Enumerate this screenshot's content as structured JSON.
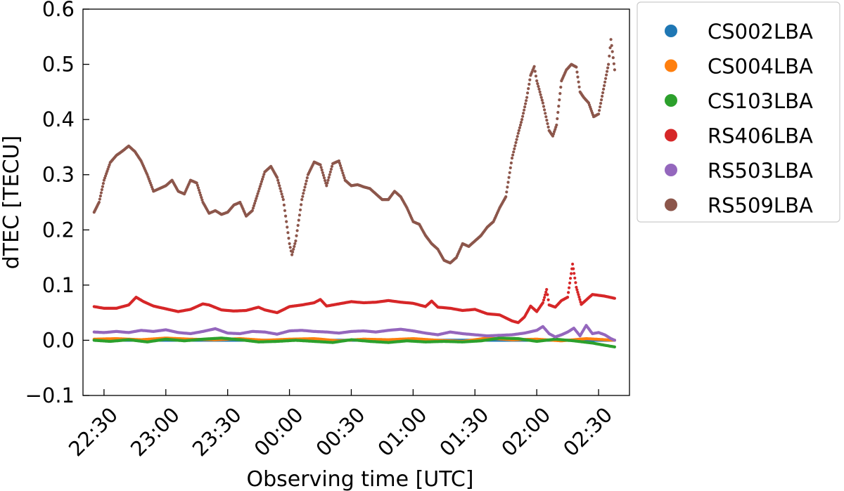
{
  "chart_data": {
    "type": "scatter",
    "title": "",
    "xlabel": "Observing time [UTC]",
    "ylabel": "dTEC [TECU]",
    "x_unit": "UTC time (hours; values past 24 are after midnight)",
    "xlim": [
      22.33,
      26.75
    ],
    "ylim": [
      -0.1,
      0.6
    ],
    "x_ticks": [
      22.5,
      23.0,
      23.5,
      24.0,
      24.5,
      25.0,
      25.5,
      26.0,
      26.5
    ],
    "x_tick_labels": [
      "22:30",
      "23:00",
      "23:30",
      "00:00",
      "00:30",
      "01:00",
      "01:30",
      "02:00",
      "02:30"
    ],
    "y_ticks": [
      -0.1,
      0.0,
      0.1,
      0.2,
      0.3,
      0.4,
      0.5,
      0.6
    ],
    "y_tick_labels": [
      "−0.1",
      "0.0",
      "0.1",
      "0.2",
      "0.3",
      "0.4",
      "0.5",
      "0.6"
    ],
    "legend_position": "outside right, top",
    "grid": false,
    "series": [
      {
        "name": "CS002LBA",
        "color": "#1f77b4",
        "points": [
          [
            22.42,
            0.0
          ],
          [
            22.7,
            0.0
          ],
          [
            23.0,
            0.0
          ],
          [
            23.3,
            0.0
          ],
          [
            23.6,
            0.0
          ],
          [
            23.9,
            0.0
          ],
          [
            24.2,
            0.0
          ],
          [
            24.5,
            0.0
          ],
          [
            24.8,
            0.0
          ],
          [
            25.1,
            0.0
          ],
          [
            25.4,
            0.0
          ],
          [
            25.7,
            0.0
          ],
          [
            26.0,
            0.0
          ],
          [
            26.3,
            0.0
          ],
          [
            26.63,
            0.0
          ]
        ]
      },
      {
        "name": "CS004LBA",
        "color": "#ff7f0e",
        "points": [
          [
            22.42,
            0.002
          ],
          [
            22.6,
            0.003
          ],
          [
            22.8,
            0.001
          ],
          [
            23.0,
            0.004
          ],
          [
            23.2,
            0.002
          ],
          [
            23.4,
            0.001
          ],
          [
            23.6,
            0.003
          ],
          [
            23.8,
            0.0
          ],
          [
            24.0,
            0.002
          ],
          [
            24.2,
            0.003
          ],
          [
            24.4,
            -0.001
          ],
          [
            24.6,
            0.002
          ],
          [
            24.8,
            0.001
          ],
          [
            25.0,
            0.003
          ],
          [
            25.2,
            0.0
          ],
          [
            25.4,
            -0.002
          ],
          [
            25.6,
            0.004
          ],
          [
            25.8,
            0.001
          ],
          [
            26.0,
            0.002
          ],
          [
            26.2,
            -0.001
          ],
          [
            26.4,
            0.003
          ],
          [
            26.63,
            0.0
          ]
        ]
      },
      {
        "name": "CS103LBA",
        "color": "#2ca02c",
        "points": [
          [
            22.42,
            0.0
          ],
          [
            22.55,
            -0.002
          ],
          [
            22.7,
            0.001
          ],
          [
            22.85,
            -0.003
          ],
          [
            23.0,
            0.002
          ],
          [
            23.15,
            -0.001
          ],
          [
            23.3,
            0.002
          ],
          [
            23.45,
            0.004
          ],
          [
            23.6,
            0.001
          ],
          [
            23.75,
            -0.003
          ],
          [
            23.9,
            -0.002
          ],
          [
            24.05,
            0.0
          ],
          [
            24.2,
            -0.002
          ],
          [
            24.35,
            -0.004
          ],
          [
            24.5,
            0.001
          ],
          [
            24.65,
            -0.002
          ],
          [
            24.8,
            -0.004
          ],
          [
            24.95,
            -0.001
          ],
          [
            25.1,
            -0.003
          ],
          [
            25.25,
            -0.002
          ],
          [
            25.4,
            -0.003
          ],
          [
            25.55,
            -0.001
          ],
          [
            25.7,
            0.004
          ],
          [
            25.85,
            0.003
          ],
          [
            26.0,
            -0.002
          ],
          [
            26.15,
            0.002
          ],
          [
            26.3,
            -0.001
          ],
          [
            26.45,
            -0.005
          ],
          [
            26.55,
            -0.009
          ],
          [
            26.63,
            -0.012
          ]
        ]
      },
      {
        "name": "RS406LBA",
        "color": "#d62728",
        "points": [
          [
            22.42,
            0.061
          ],
          [
            22.5,
            0.058
          ],
          [
            22.6,
            0.058
          ],
          [
            22.7,
            0.064
          ],
          [
            22.76,
            0.078
          ],
          [
            22.82,
            0.07
          ],
          [
            22.9,
            0.062
          ],
          [
            23.0,
            0.057
          ],
          [
            23.1,
            0.052
          ],
          [
            23.2,
            0.056
          ],
          [
            23.3,
            0.066
          ],
          [
            23.35,
            0.064
          ],
          [
            23.45,
            0.055
          ],
          [
            23.55,
            0.053
          ],
          [
            23.65,
            0.054
          ],
          [
            23.75,
            0.06
          ],
          [
            23.8,
            0.055
          ],
          [
            23.9,
            0.05
          ],
          [
            24.0,
            0.061
          ],
          [
            24.1,
            0.064
          ],
          [
            24.2,
            0.068
          ],
          [
            24.25,
            0.074
          ],
          [
            24.3,
            0.062
          ],
          [
            24.4,
            0.066
          ],
          [
            24.5,
            0.07
          ],
          [
            24.6,
            0.068
          ],
          [
            24.7,
            0.069
          ],
          [
            24.8,
            0.072
          ],
          [
            24.9,
            0.069
          ],
          [
            25.0,
            0.067
          ],
          [
            25.1,
            0.061
          ],
          [
            25.15,
            0.071
          ],
          [
            25.2,
            0.06
          ],
          [
            25.3,
            0.058
          ],
          [
            25.4,
            0.054
          ],
          [
            25.5,
            0.056
          ],
          [
            25.6,
            0.048
          ],
          [
            25.7,
            0.046
          ],
          [
            25.8,
            0.035
          ],
          [
            25.85,
            0.032
          ],
          [
            25.9,
            0.042
          ],
          [
            25.95,
            0.062
          ],
          [
            26.0,
            0.052
          ],
          [
            26.05,
            0.068
          ],
          [
            26.08,
            0.092
          ],
          [
            26.1,
            0.064
          ],
          [
            26.15,
            0.06
          ],
          [
            26.2,
            0.072
          ],
          [
            26.25,
            0.078
          ],
          [
            26.29,
            0.138
          ],
          [
            26.32,
            0.096
          ],
          [
            26.36,
            0.065
          ],
          [
            26.45,
            0.083
          ],
          [
            26.55,
            0.08
          ],
          [
            26.63,
            0.076
          ]
        ]
      },
      {
        "name": "RS503LBA",
        "color": "#9467bd",
        "points": [
          [
            22.42,
            0.015
          ],
          [
            22.5,
            0.014
          ],
          [
            22.6,
            0.016
          ],
          [
            22.7,
            0.014
          ],
          [
            22.8,
            0.018
          ],
          [
            22.9,
            0.016
          ],
          [
            23.0,
            0.019
          ],
          [
            23.1,
            0.014
          ],
          [
            23.2,
            0.012
          ],
          [
            23.3,
            0.016
          ],
          [
            23.4,
            0.021
          ],
          [
            23.5,
            0.013
          ],
          [
            23.6,
            0.012
          ],
          [
            23.7,
            0.016
          ],
          [
            23.8,
            0.015
          ],
          [
            23.9,
            0.011
          ],
          [
            24.0,
            0.017
          ],
          [
            24.1,
            0.018
          ],
          [
            24.2,
            0.016
          ],
          [
            24.3,
            0.015
          ],
          [
            24.4,
            0.013
          ],
          [
            24.5,
            0.016
          ],
          [
            24.6,
            0.017
          ],
          [
            24.7,
            0.015
          ],
          [
            24.8,
            0.018
          ],
          [
            24.9,
            0.02
          ],
          [
            25.0,
            0.017
          ],
          [
            25.1,
            0.013
          ],
          [
            25.2,
            0.01
          ],
          [
            25.3,
            0.015
          ],
          [
            25.4,
            0.012
          ],
          [
            25.5,
            0.01
          ],
          [
            25.6,
            0.008
          ],
          [
            25.7,
            0.009
          ],
          [
            25.8,
            0.01
          ],
          [
            25.9,
            0.013
          ],
          [
            26.0,
            0.018
          ],
          [
            26.05,
            0.025
          ],
          [
            26.1,
            0.012
          ],
          [
            26.15,
            0.006
          ],
          [
            26.2,
            0.01
          ],
          [
            26.25,
            0.015
          ],
          [
            26.3,
            0.022
          ],
          [
            26.35,
            0.008
          ],
          [
            26.4,
            0.027
          ],
          [
            26.45,
            0.012
          ],
          [
            26.5,
            0.014
          ],
          [
            26.55,
            0.01
          ],
          [
            26.6,
            0.003
          ],
          [
            26.63,
            0.0
          ]
        ]
      },
      {
        "name": "RS509LBA",
        "color": "#8c564b",
        "points": [
          [
            22.42,
            0.232
          ],
          [
            22.46,
            0.25
          ],
          [
            22.5,
            0.29
          ],
          [
            22.55,
            0.322
          ],
          [
            22.6,
            0.335
          ],
          [
            22.65,
            0.343
          ],
          [
            22.7,
            0.352
          ],
          [
            22.75,
            0.342
          ],
          [
            22.8,
            0.325
          ],
          [
            22.85,
            0.3
          ],
          [
            22.9,
            0.27
          ],
          [
            22.95,
            0.275
          ],
          [
            23.0,
            0.28
          ],
          [
            23.05,
            0.29
          ],
          [
            23.1,
            0.27
          ],
          [
            23.15,
            0.265
          ],
          [
            23.2,
            0.29
          ],
          [
            23.25,
            0.285
          ],
          [
            23.3,
            0.25
          ],
          [
            23.35,
            0.23
          ],
          [
            23.4,
            0.235
          ],
          [
            23.45,
            0.228
          ],
          [
            23.5,
            0.232
          ],
          [
            23.55,
            0.245
          ],
          [
            23.6,
            0.25
          ],
          [
            23.65,
            0.225
          ],
          [
            23.7,
            0.235
          ],
          [
            23.75,
            0.27
          ],
          [
            23.8,
            0.305
          ],
          [
            23.85,
            0.315
          ],
          [
            23.9,
            0.295
          ],
          [
            23.95,
            0.255
          ],
          [
            24.0,
            0.175
          ],
          [
            24.02,
            0.155
          ],
          [
            24.05,
            0.18
          ],
          [
            24.1,
            0.255
          ],
          [
            24.15,
            0.3
          ],
          [
            24.2,
            0.323
          ],
          [
            24.25,
            0.318
          ],
          [
            24.3,
            0.28
          ],
          [
            24.35,
            0.32
          ],
          [
            24.4,
            0.325
          ],
          [
            24.45,
            0.29
          ],
          [
            24.5,
            0.28
          ],
          [
            24.55,
            0.282
          ],
          [
            24.6,
            0.278
          ],
          [
            24.65,
            0.275
          ],
          [
            24.7,
            0.265
          ],
          [
            24.75,
            0.255
          ],
          [
            24.8,
            0.255
          ],
          [
            24.85,
            0.27
          ],
          [
            24.9,
            0.26
          ],
          [
            24.95,
            0.24
          ],
          [
            25.0,
            0.215
          ],
          [
            25.05,
            0.21
          ],
          [
            25.1,
            0.19
          ],
          [
            25.15,
            0.175
          ],
          [
            25.2,
            0.165
          ],
          [
            25.25,
            0.145
          ],
          [
            25.3,
            0.14
          ],
          [
            25.35,
            0.15
          ],
          [
            25.4,
            0.175
          ],
          [
            25.45,
            0.17
          ],
          [
            25.5,
            0.18
          ],
          [
            25.55,
            0.19
          ],
          [
            25.6,
            0.205
          ],
          [
            25.65,
            0.215
          ],
          [
            25.7,
            0.24
          ],
          [
            25.75,
            0.26
          ],
          [
            25.8,
            0.33
          ],
          [
            25.85,
            0.375
          ],
          [
            25.88,
            0.4
          ],
          [
            25.92,
            0.44
          ],
          [
            25.95,
            0.48
          ],
          [
            25.98,
            0.496
          ],
          [
            26.0,
            0.47
          ],
          [
            26.05,
            0.43
          ],
          [
            26.1,
            0.38
          ],
          [
            26.13,
            0.37
          ],
          [
            26.16,
            0.39
          ],
          [
            26.2,
            0.47
          ],
          [
            26.24,
            0.49
          ],
          [
            26.28,
            0.5
          ],
          [
            26.32,
            0.495
          ],
          [
            26.35,
            0.45
          ],
          [
            26.38,
            0.44
          ],
          [
            26.42,
            0.43
          ],
          [
            26.46,
            0.405
          ],
          [
            26.5,
            0.41
          ],
          [
            26.54,
            0.455
          ],
          [
            26.58,
            0.5
          ],
          [
            26.6,
            0.545
          ],
          [
            26.63,
            0.49
          ]
        ]
      }
    ]
  }
}
